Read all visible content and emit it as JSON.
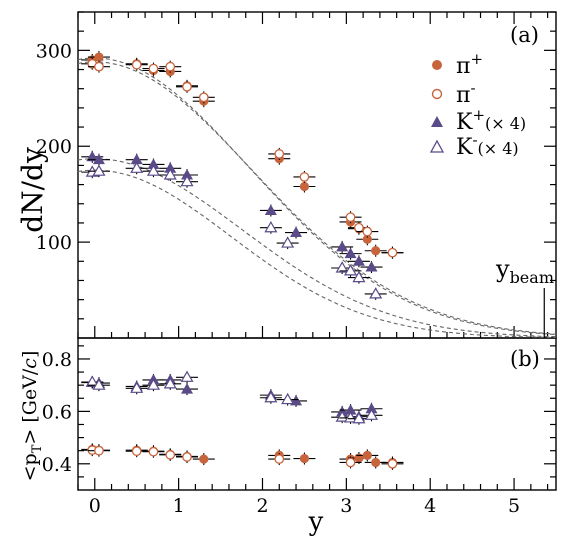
{
  "chart_data": [
    {
      "panel": "(a)",
      "type": "scatter",
      "ylabel": "dN/dy",
      "xlim": [
        -0.2,
        5.5
      ],
      "ylim": [
        0,
        340
      ],
      "yticks": [
        100,
        200,
        300
      ],
      "xticks": [
        0,
        1,
        2,
        3,
        4,
        5
      ],
      "annotation": "y",
      "annotation_sub": "beam",
      "ybeam": 5.36,
      "legend_position": "top-right",
      "series": [
        {
          "name": "π⁺",
          "marker": "filled-circle",
          "color": "#c8643c",
          "points": [
            {
              "x": -0.03,
              "y": 290
            },
            {
              "x": 0.05,
              "y": 293
            },
            {
              "x": 0.5,
              "y": 286
            },
            {
              "x": 0.7,
              "y": 279
            },
            {
              "x": 0.9,
              "y": 278
            },
            {
              "x": 1.1,
              "y": 263
            },
            {
              "x": 1.3,
              "y": 247
            },
            {
              "x": 2.2,
              "y": 187
            },
            {
              "x": 2.5,
              "y": 158
            },
            {
              "x": 3.05,
              "y": 121
            },
            {
              "x": 3.15,
              "y": 114
            },
            {
              "x": 3.25,
              "y": 103
            },
            {
              "x": 3.35,
              "y": 91
            },
            {
              "x": 3.55,
              "y": 89
            }
          ]
        },
        {
          "name": "π⁻",
          "marker": "open-circle",
          "color": "#c8643c",
          "points": [
            {
              "x": -0.03,
              "y": 286
            },
            {
              "x": 0.05,
              "y": 283
            },
            {
              "x": 0.5,
              "y": 285
            },
            {
              "x": 0.7,
              "y": 281
            },
            {
              "x": 0.9,
              "y": 283
            },
            {
              "x": 1.1,
              "y": 262
            },
            {
              "x": 1.3,
              "y": 251
            },
            {
              "x": 2.2,
              "y": 192
            },
            {
              "x": 2.5,
              "y": 168
            },
            {
              "x": 3.05,
              "y": 126
            },
            {
              "x": 3.15,
              "y": 115
            },
            {
              "x": 3.25,
              "y": 111
            },
            {
              "x": 3.55,
              "y": 89
            }
          ]
        },
        {
          "name": "K⁺",
          "name_suffix": "(×4)",
          "marker": "filled-triangle",
          "color": "#5a4a88",
          "points": [
            {
              "x": -0.03,
              "y": 189
            },
            {
              "x": 0.05,
              "y": 186
            },
            {
              "x": 0.5,
              "y": 186
            },
            {
              "x": 0.7,
              "y": 181
            },
            {
              "x": 0.9,
              "y": 177
            },
            {
              "x": 1.1,
              "y": 170
            },
            {
              "x": 2.1,
              "y": 133
            },
            {
              "x": 2.4,
              "y": 110
            },
            {
              "x": 2.95,
              "y": 95
            },
            {
              "x": 3.05,
              "y": 88
            },
            {
              "x": 3.15,
              "y": 80
            },
            {
              "x": 3.3,
              "y": 74
            }
          ]
        },
        {
          "name": "K⁻",
          "name_suffix": "(×4)",
          "marker": "open-triangle",
          "color": "#5a4a88",
          "points": [
            {
              "x": -0.03,
              "y": 173
            },
            {
              "x": 0.05,
              "y": 174
            },
            {
              "x": 0.5,
              "y": 177
            },
            {
              "x": 0.7,
              "y": 174
            },
            {
              "x": 0.9,
              "y": 170
            },
            {
              "x": 1.1,
              "y": 163
            },
            {
              "x": 2.1,
              "y": 115
            },
            {
              "x": 2.3,
              "y": 99
            },
            {
              "x": 2.95,
              "y": 73
            },
            {
              "x": 3.05,
              "y": 70
            },
            {
              "x": 3.15,
              "y": 63
            },
            {
              "x": 3.35,
              "y": 46
            }
          ]
        }
      ],
      "fits": [
        {
          "norm": 292,
          "sigma": 1.85,
          "mu": 0.0
        },
        {
          "norm": 288,
          "sigma": 1.88,
          "mu": 0.0
        },
        {
          "norm": 187,
          "sigma": 1.75,
          "mu": 0.0
        },
        {
          "norm": 175,
          "sigma": 1.62,
          "mu": 0.0
        }
      ]
    },
    {
      "panel": "(b)",
      "type": "scatter",
      "ylabel": "<p",
      "ylabel_sub": "T",
      "ylabel_rest": "> [GeV/",
      "ylabel_c": "c",
      "ylabel_end": "]",
      "xlabel": "y",
      "xlim": [
        -0.2,
        5.5
      ],
      "ylim": [
        0.3,
        0.88
      ],
      "yticks": [
        0.4,
        0.6,
        0.8
      ],
      "ytick_labels": [
        "0.4",
        "0.6",
        "0.8"
      ],
      "xticks": [
        0,
        1,
        2,
        3,
        4,
        5
      ],
      "xtick_labels": [
        "0",
        "1",
        "2",
        "3",
        "4",
        "5"
      ],
      "series": [
        {
          "name": "π⁺",
          "marker": "filled-circle",
          "color": "#c8643c",
          "points": [
            {
              "x": -0.03,
              "y": 0.455
            },
            {
              "x": 0.05,
              "y": 0.452
            },
            {
              "x": 0.5,
              "y": 0.452
            },
            {
              "x": 0.7,
              "y": 0.448
            },
            {
              "x": 0.9,
              "y": 0.436
            },
            {
              "x": 1.1,
              "y": 0.428
            },
            {
              "x": 1.3,
              "y": 0.418
            },
            {
              "x": 2.2,
              "y": 0.432
            },
            {
              "x": 2.5,
              "y": 0.42
            },
            {
              "x": 3.05,
              "y": 0.418
            },
            {
              "x": 3.15,
              "y": 0.422
            },
            {
              "x": 3.25,
              "y": 0.432
            },
            {
              "x": 3.35,
              "y": 0.405
            },
            {
              "x": 3.55,
              "y": 0.405
            }
          ]
        },
        {
          "name": "π⁻",
          "marker": "open-circle",
          "color": "#c8643c",
          "points": [
            {
              "x": -0.03,
              "y": 0.452
            },
            {
              "x": 0.05,
              "y": 0.45
            },
            {
              "x": 0.5,
              "y": 0.448
            },
            {
              "x": 0.7,
              "y": 0.446
            },
            {
              "x": 0.9,
              "y": 0.434
            },
            {
              "x": 1.1,
              "y": 0.426
            },
            {
              "x": 2.2,
              "y": 0.418
            },
            {
              "x": 3.05,
              "y": 0.405
            },
            {
              "x": 3.55,
              "y": 0.4
            }
          ]
        },
        {
          "name": "K⁺",
          "marker": "filled-triangle",
          "color": "#5a4a88",
          "points": [
            {
              "x": -0.03,
              "y": 0.71
            },
            {
              "x": 0.05,
              "y": 0.708
            },
            {
              "x": 0.5,
              "y": 0.695
            },
            {
              "x": 0.7,
              "y": 0.72
            },
            {
              "x": 0.9,
              "y": 0.72
            },
            {
              "x": 1.1,
              "y": 0.685
            },
            {
              "x": 2.1,
              "y": 0.662
            },
            {
              "x": 2.4,
              "y": 0.64
            },
            {
              "x": 2.95,
              "y": 0.598
            },
            {
              "x": 3.05,
              "y": 0.605
            },
            {
              "x": 3.15,
              "y": 0.58
            },
            {
              "x": 3.3,
              "y": 0.61
            }
          ]
        },
        {
          "name": "K⁻",
          "marker": "open-triangle",
          "color": "#5a4a88",
          "points": [
            {
              "x": -0.03,
              "y": 0.712
            },
            {
              "x": 0.05,
              "y": 0.7
            },
            {
              "x": 0.5,
              "y": 0.688
            },
            {
              "x": 0.7,
              "y": 0.7
            },
            {
              "x": 0.9,
              "y": 0.705
            },
            {
              "x": 1.1,
              "y": 0.73
            },
            {
              "x": 2.1,
              "y": 0.652
            },
            {
              "x": 2.3,
              "y": 0.645
            },
            {
              "x": 2.95,
              "y": 0.578
            },
            {
              "x": 3.05,
              "y": 0.575
            },
            {
              "x": 3.15,
              "y": 0.572
            },
            {
              "x": 3.3,
              "y": 0.585
            }
          ]
        }
      ]
    }
  ],
  "panel_a": {
    "label": "(a)",
    "ylabel": "dN/dy",
    "ytick_labels": [
      "100",
      "200",
      "300"
    ],
    "legend": [
      {
        "name": "π",
        "sup": "+",
        "suffix": ""
      },
      {
        "name": "π",
        "sup": "-",
        "suffix": ""
      },
      {
        "name": "K",
        "sup": "+",
        "suffix": "(× 4)"
      },
      {
        "name": "K",
        "sup": "-",
        "suffix": "(× 4)"
      }
    ],
    "ybeam_main": "y",
    "ybeam_sub": "beam"
  },
  "panel_b": {
    "label": "(b)",
    "xlabel": "y"
  },
  "colors": {
    "pion": "#c8643c",
    "kaon": "#5a4a88",
    "fit": "#666666"
  }
}
